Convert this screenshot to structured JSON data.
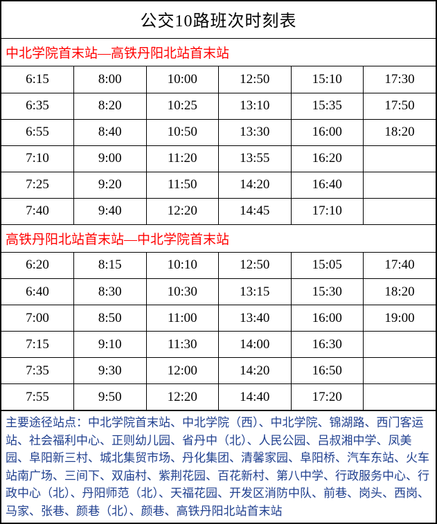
{
  "colors": {
    "direction_text": "#ff0000",
    "stops_text": "#1f3f8f",
    "border": "#000000",
    "background": "#ffffff"
  },
  "title": "公交10路班次时刻表",
  "directions": [
    {
      "header": "中北学院首末站—高铁丹阳北站首末站",
      "rows": [
        [
          "6:15",
          "8:00",
          "10:00",
          "12:50",
          "15:10",
          "17:30"
        ],
        [
          "6:35",
          "8:20",
          "10:25",
          "13:10",
          "15:35",
          "17:50"
        ],
        [
          "6:55",
          "8:40",
          "10:50",
          "13:30",
          "16:00",
          "18:20"
        ],
        [
          "7:10",
          "9:00",
          "11:20",
          "13:55",
          "16:20",
          ""
        ],
        [
          "7:25",
          "9:20",
          "11:50",
          "14:20",
          "16:40",
          ""
        ],
        [
          "7:40",
          "9:40",
          "12:20",
          "14:45",
          "17:10",
          ""
        ]
      ]
    },
    {
      "header": "高铁丹阳北站首末站—中北学院首末站",
      "rows": [
        [
          "6:20",
          "8:15",
          "10:10",
          "12:50",
          "15:05",
          "17:40"
        ],
        [
          "6:40",
          "8:30",
          "10:30",
          "13:15",
          "15:30",
          "18:20"
        ],
        [
          "7:00",
          "8:50",
          "11:00",
          "13:40",
          "16:00",
          "19:00"
        ],
        [
          "7:15",
          "9:10",
          "11:30",
          "14:00",
          "16:30",
          ""
        ],
        [
          "7:35",
          "9:30",
          "12:00",
          "14:20",
          "16:50",
          ""
        ],
        [
          "7:55",
          "9:50",
          "12:20",
          "14:40",
          "17:20",
          ""
        ]
      ]
    }
  ],
  "stops_label": "主要途径站点：",
  "stops_text": "中北学院首末站、中北学院（西）、中北学院、锦湖路、西门客运站、社会福利中心、正则幼儿园、省丹中（北）、人民公园、吕叔湘中学、凤美园、阜阳新三村、城北集贸市场、丹化集团、清馨家园、阜阳桥、汽车东站、火车站南广场、三间下、双庙村、紫荆花园、百花新村、第八中学、行政服务中心、行政中心（北）、丹阳师范（北）、天福花园、开发区消防中队、前巷、岗头、西岗、马家、张巷、颜巷（北）、颜巷、高铁丹阳北站首末站"
}
